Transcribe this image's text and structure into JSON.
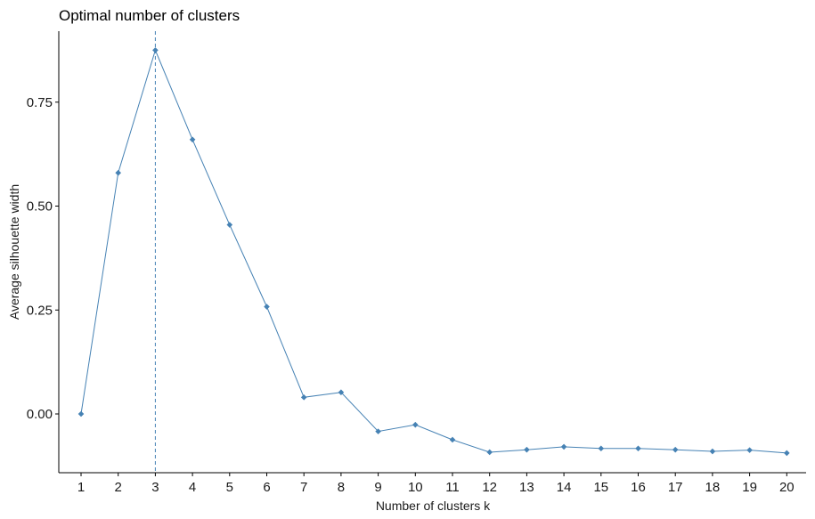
{
  "chart_data": {
    "type": "line",
    "title": "Optimal number of clusters",
    "xlabel": "Number of clusters k",
    "ylabel": "Average silhouette width",
    "x": [
      "1",
      "2",
      "3",
      "4",
      "5",
      "6",
      "7",
      "8",
      "9",
      "10",
      "11",
      "12",
      "13",
      "14",
      "15",
      "16",
      "17",
      "18",
      "19",
      "20"
    ],
    "series": [
      {
        "values": [
          0.0,
          0.58,
          0.875,
          0.66,
          0.455,
          0.258,
          0.04,
          0.052,
          -0.042,
          -0.026,
          -0.062,
          -0.092,
          -0.086,
          -0.079,
          -0.083,
          -0.083,
          -0.086,
          -0.09,
          -0.087,
          -0.094
        ]
      }
    ],
    "yticks": [
      0.0,
      0.25,
      0.5,
      0.75
    ],
    "ytick_labels": [
      "0.00",
      "0.25",
      "0.50",
      "0.75"
    ],
    "ylim": [
      -0.14,
      0.92
    ],
    "optimal_k": "3",
    "grid": false,
    "colors": {
      "line": "#4682B4",
      "points": "#4682B4",
      "optimal_line": "#4682B4",
      "axis": "#000000"
    }
  }
}
